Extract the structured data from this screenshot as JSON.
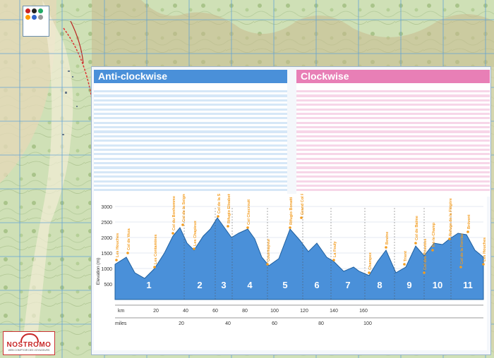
{
  "map": {
    "legend_title": "",
    "legend_colors": [
      "#c22",
      "#222",
      "#2a6",
      "#f90",
      "#36c",
      "#999"
    ]
  },
  "tables": {
    "anticlockwise_title": "Anti-clockwise",
    "clockwise_title": "Clockwise"
  },
  "profile": {
    "y_axis_title": "Elevation (m)",
    "y_ticks": [
      "3000",
      "2500",
      "2000",
      "1500",
      "1000",
      "500"
    ],
    "km_label": "km",
    "miles_label": "miles",
    "km_ticks": [
      "20",
      "40",
      "60",
      "80",
      "100",
      "120",
      "140",
      "160"
    ],
    "mile_ticks": [
      "20",
      "40",
      "60",
      "80",
      "100"
    ],
    "stage_numbers": [
      "1",
      "2",
      "3",
      "4",
      "5",
      "6",
      "7",
      "8",
      "9",
      "10",
      "11"
    ],
    "place_labels": [
      "Les Houches",
      "Col de Voza",
      "Les Contamines",
      "Col du Bonhomme",
      "Col de la Seigne",
      "Les Chapieux",
      "Col de la Seigne",
      "Rifugio Elisabetta",
      "Col Checrouit",
      "Courmayeur",
      "Rifugio Bonatti",
      "Grand Col Ferret",
      "La Fouly",
      "Champex",
      "Bovine",
      "Trient",
      "Col de Balme",
      "Col des Posettes",
      "Tré-le-Champ",
      "Refuge de la Flégère",
      "Brévent",
      "Col de la Forclaz",
      "Les Houches"
    ]
  },
  "logo": {
    "name": "NOSTROMO",
    "tagline": "WEB COMPTOIR DES VOYAGEURS"
  }
}
